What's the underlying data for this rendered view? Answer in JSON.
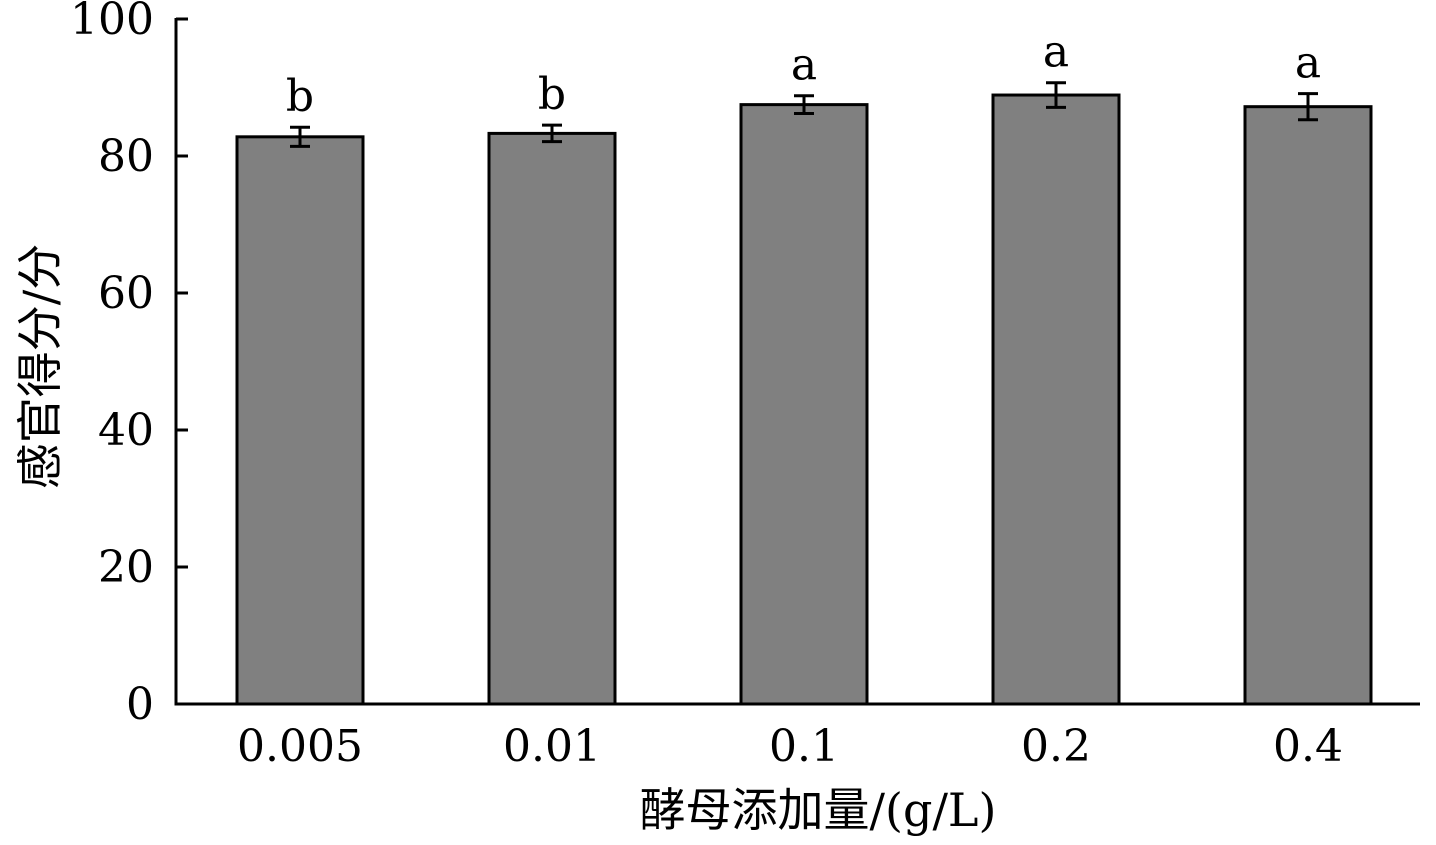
{
  "chart_data": {
    "type": "bar",
    "categories": [
      "0.005",
      "0.01",
      "0.1",
      "0.2",
      "0.4"
    ],
    "values": [
      82.8,
      83.3,
      87.5,
      88.9,
      87.2
    ],
    "errors": [
      1.4,
      1.2,
      1.3,
      1.8,
      1.9
    ],
    "significance_labels": [
      "b",
      "b",
      "a",
      "a",
      "a"
    ],
    "xlabel": "酵母添加量/(g/L)",
    "ylabel": "感官得分/分",
    "ylim": [
      0,
      100
    ],
    "yticks": [
      0,
      20,
      40,
      60,
      80,
      100
    ],
    "ytick_labels": [
      "0",
      "20",
      "40",
      "60",
      "80",
      "100"
    ],
    "grid": false,
    "legend": "none",
    "bar_color": "#808080",
    "edge_color": "#000000"
  }
}
